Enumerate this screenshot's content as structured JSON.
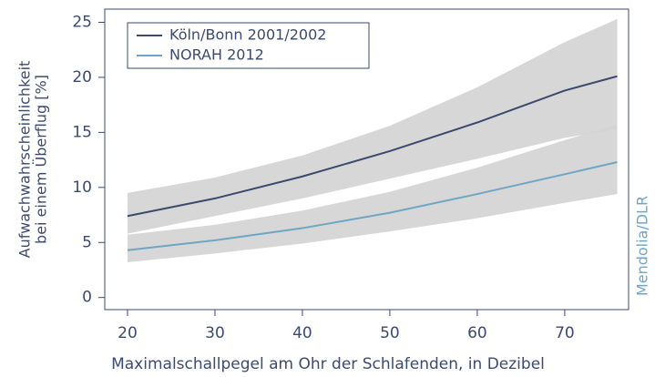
{
  "chart_data": {
    "type": "line",
    "x_label": "Maximalschallpegel am Ohr der Schlafenden, in Dezibel",
    "y_label": [
      "Aufwachwahrscheinlichkeit",
      "bei einem Überflug [%]"
    ],
    "source": "Mendolia/DLR",
    "x": [
      20,
      30,
      40,
      50,
      60,
      70,
      76
    ],
    "series": [
      {
        "name": "Köln/Bonn 2001/2002",
        "color": "#3b4a6e",
        "values": [
          7.4,
          9.0,
          11.0,
          13.3,
          15.9,
          18.8,
          20.1
        ],
        "ci_lower": [
          5.8,
          7.4,
          9.0,
          10.8,
          12.6,
          14.5,
          15.3
        ],
        "ci_upper": [
          9.5,
          10.9,
          12.9,
          15.6,
          19.1,
          23.2,
          25.3
        ]
      },
      {
        "name": "NORAH 2012",
        "color": "#6fa6c4",
        "values": [
          4.3,
          5.2,
          6.3,
          7.7,
          9.4,
          11.2,
          12.3
        ],
        "ci_lower": [
          3.2,
          4.0,
          4.9,
          6.0,
          7.2,
          8.6,
          9.4
        ],
        "ci_upper": [
          5.7,
          6.6,
          7.9,
          9.6,
          11.8,
          14.3,
          15.7
        ]
      }
    ],
    "band_color": "#d3d3d3",
    "xlim": [
      17.4,
      77.3
    ],
    "xticks": [
      20,
      30,
      40,
      50,
      60,
      70
    ],
    "ylim": [
      -1.1,
      26.2
    ],
    "yticks": [
      0,
      5,
      10,
      15,
      20,
      25
    ],
    "legend": "upper left"
  }
}
